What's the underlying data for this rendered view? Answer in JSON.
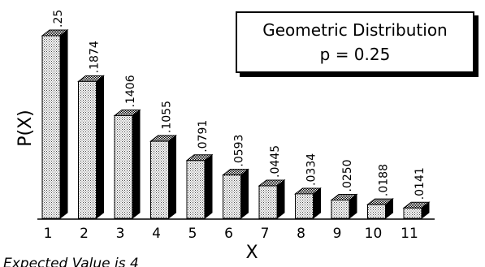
{
  "chart_data": {
    "type": "bar",
    "title": "Geometric Distribution",
    "subtitle": "p = 0.25",
    "xlabel": "X",
    "ylabel": "P(X)",
    "caption": "Expected Value is 4",
    "categories": [
      "1",
      "2",
      "3",
      "4",
      "5",
      "6",
      "7",
      "8",
      "9",
      "10",
      "11"
    ],
    "values": [
      0.25,
      0.1874,
      0.1406,
      0.1055,
      0.0791,
      0.0593,
      0.0445,
      0.0334,
      0.025,
      0.0188,
      0.0141
    ],
    "value_labels": [
      ".25",
      ".1874",
      ".1406",
      ".1055",
      ".0791",
      ".0593",
      ".0445",
      ".0334",
      ".0250",
      ".0188",
      ".0141"
    ],
    "ylim": [
      0,
      0.25
    ],
    "grid": false,
    "legend": "top-right",
    "bar_style": "3d stippled",
    "colors": {
      "bar_face": "#ececec",
      "bar_top": "#9a9a9a",
      "bar_side": "#000000"
    }
  }
}
